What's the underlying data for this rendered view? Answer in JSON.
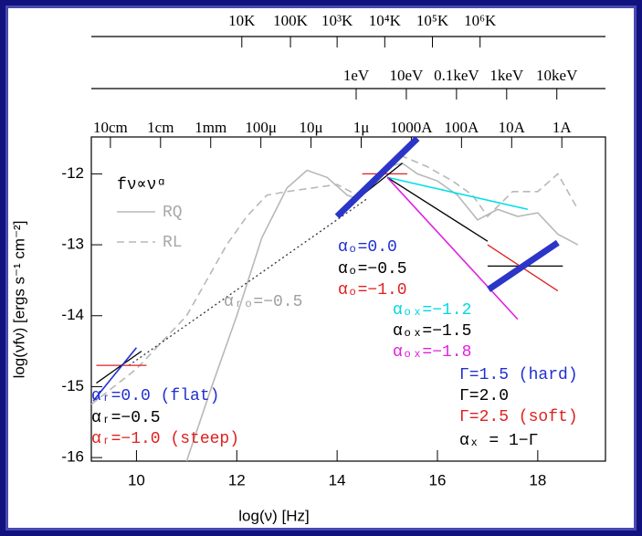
{
  "chart_data": {
    "type": "line",
    "xlabel": "log(ν) [Hz]",
    "ylabel": "log(νfν) [ergs s⁻¹ cm⁻²]",
    "xlim": [
      9.1,
      19.35
    ],
    "ylim": [
      -16.05,
      -11.48
    ],
    "xticks": [
      10,
      12,
      14,
      16,
      18
    ],
    "yticks": [
      -12,
      -13,
      -14,
      -15,
      -16
    ],
    "wavelength_ticks": [
      {
        "value": 9.48,
        "label": "10cm"
      },
      {
        "value": 10.48,
        "label": "1cm"
      },
      {
        "value": 11.48,
        "label": "1mm"
      },
      {
        "value": 12.48,
        "label": "100μ"
      },
      {
        "value": 13.48,
        "label": "10μ"
      },
      {
        "value": 14.48,
        "label": "1μ"
      },
      {
        "value": 15.48,
        "label": "1000A"
      },
      {
        "value": 16.48,
        "label": "100A"
      },
      {
        "value": 17.48,
        "label": "10A"
      },
      {
        "value": 18.48,
        "label": "1A"
      }
    ],
    "energy_ticks": [
      {
        "value": 14.38,
        "label": "1eV"
      },
      {
        "value": 15.38,
        "label": "10eV"
      },
      {
        "value": 16.38,
        "label": "0.1keV"
      },
      {
        "value": 17.38,
        "label": "1keV"
      },
      {
        "value": 18.38,
        "label": "10keV"
      }
    ],
    "temperature_ticks": [
      {
        "value": 12.1,
        "label": "10K"
      },
      {
        "value": 13.07,
        "label": "100K"
      },
      {
        "value": 14.0,
        "label": "10³K"
      },
      {
        "value": 14.95,
        "label": "10⁴K"
      },
      {
        "value": 15.9,
        "label": "10⁵K"
      },
      {
        "value": 16.85,
        "label": "10⁶K"
      }
    ],
    "series": [
      {
        "name": "RQ",
        "color": "#b8b8b8",
        "dash": "solid",
        "linewidth": 1.6,
        "x": [
          11.0,
          11.5,
          12.0,
          12.5,
          13.0,
          13.4,
          13.8,
          14.2,
          14.4,
          14.7,
          15.0,
          15.3,
          15.6,
          16.0,
          16.4,
          16.8,
          17.2,
          17.6,
          18.0,
          18.4,
          18.8
        ],
        "values": [
          -16.05,
          -15.0,
          -14.0,
          -12.9,
          -12.2,
          -11.95,
          -12.05,
          -12.3,
          -12.35,
          -12.1,
          -11.9,
          -11.85,
          -12.0,
          -12.1,
          -12.3,
          -12.65,
          -12.5,
          -12.6,
          -12.55,
          -12.85,
          -13.0
        ]
      },
      {
        "name": "RL",
        "color": "#b8b8b8",
        "dash": "dashed",
        "linewidth": 1.6,
        "x": [
          9.1,
          10.0,
          11.0,
          11.8,
          12.2,
          12.6,
          13.0,
          13.5,
          14.0,
          14.4,
          15.0,
          15.3,
          15.8,
          16.3,
          16.7,
          17.0,
          17.5,
          18.0,
          18.4,
          18.8
        ],
        "values": [
          -15.25,
          -14.75,
          -14.0,
          -13.0,
          -12.6,
          -12.3,
          -12.25,
          -12.2,
          -12.15,
          -12.3,
          -11.95,
          -11.75,
          -11.9,
          -12.1,
          -12.3,
          -12.6,
          -12.25,
          -12.25,
          -12.0,
          -12.5
        ]
      },
      {
        "color": "#333333",
        "dash": "dotted",
        "linewidth": 1.3,
        "x": [
          9.85,
          14.6
        ],
        "values": [
          -14.7,
          -12.35
        ]
      },
      {
        "color": "#e02020",
        "dash": "solid",
        "linewidth": 1.3,
        "x": [
          9.2,
          10.2
        ],
        "values": [
          -14.7,
          -14.7
        ]
      },
      {
        "color": "#000000",
        "dash": "solid",
        "linewidth": 1.3,
        "x": [
          9.2,
          10.1
        ],
        "values": [
          -14.95,
          -14.5
        ]
      },
      {
        "color": "#2030d0",
        "dash": "solid",
        "linewidth": 1.6,
        "x": [
          9.14,
          10.0
        ],
        "values": [
          -15.2,
          -14.45
        ]
      },
      {
        "color": "#e02020",
        "dash": "solid",
        "linewidth": 1.3,
        "x": [
          14.5,
          15.4
        ],
        "values": [
          -12.0,
          -12.0
        ]
      },
      {
        "color": "#000000",
        "dash": "solid",
        "linewidth": 1.3,
        "x": [
          14.5,
          15.3
        ],
        "values": [
          -12.3,
          -11.85
        ]
      },
      {
        "color": "#00e0e8",
        "dash": "solid",
        "linewidth": 1.6,
        "x": [
          15.0,
          17.8
        ],
        "values": [
          -12.05,
          -12.5
        ]
      },
      {
        "color": "#000000",
        "dash": "solid",
        "linewidth": 1.3,
        "x": [
          15.0,
          17.0
        ],
        "values": [
          -12.05,
          -12.95
        ]
      },
      {
        "color": "#e020e0",
        "dash": "solid",
        "linewidth": 1.6,
        "x": [
          15.0,
          17.6
        ],
        "values": [
          -12.05,
          -14.05
        ]
      },
      {
        "color": "#000000",
        "dash": "solid",
        "linewidth": 1.3,
        "x": [
          17.0,
          18.5
        ],
        "values": [
          -13.3,
          -13.3
        ]
      },
      {
        "color": "#e02020",
        "dash": "solid",
        "linewidth": 1.3,
        "x": [
          17.0,
          18.4
        ],
        "values": [
          -13.0,
          -13.65
        ]
      },
      {
        "color": "#2b35c8",
        "dash": "solid",
        "linewidth": 7,
        "x": [
          14.0,
          15.6
        ],
        "values": [
          -12.6,
          -11.5
        ]
      },
      {
        "color": "#2b35c8",
        "dash": "solid",
        "linewidth": 7,
        "x": [
          17.02,
          18.4
        ],
        "values": [
          -13.63,
          -12.97
        ]
      }
    ],
    "annotations": [
      {
        "text": "fν∝νᵅ",
        "color": "#000000"
      },
      {
        "text": "αᵣₒ=−0.5",
        "color": "#a0a0a0"
      },
      {
        "text": "αₒ=0.0",
        "color": "#2030d0"
      },
      {
        "text": "αₒ=−0.5",
        "color": "#000000"
      },
      {
        "text": "αₒ=−1.0",
        "color": "#e02020"
      },
      {
        "text": "αₒₓ=−1.2",
        "color": "#00d8e0"
      },
      {
        "text": "αₒₓ=−1.5",
        "color": "#000000"
      },
      {
        "text": "αₒₓ=−1.8",
        "color": "#e020e0"
      },
      {
        "text": "Γ=1.5 (hard)",
        "color": "#2030d0"
      },
      {
        "text": "Γ=2.0",
        "color": "#000000"
      },
      {
        "text": "Γ=2.5 (soft)",
        "color": "#e02020"
      },
      {
        "text": "αₓ = 1−Γ",
        "color": "#000000"
      },
      {
        "text": "αᵣ=0.0  (flat)",
        "color": "#2030d0"
      },
      {
        "text": "αᵣ=−0.5",
        "color": "#000000"
      },
      {
        "text": "αᵣ=−1.0 (steep)",
        "color": "#e02020"
      }
    ]
  }
}
